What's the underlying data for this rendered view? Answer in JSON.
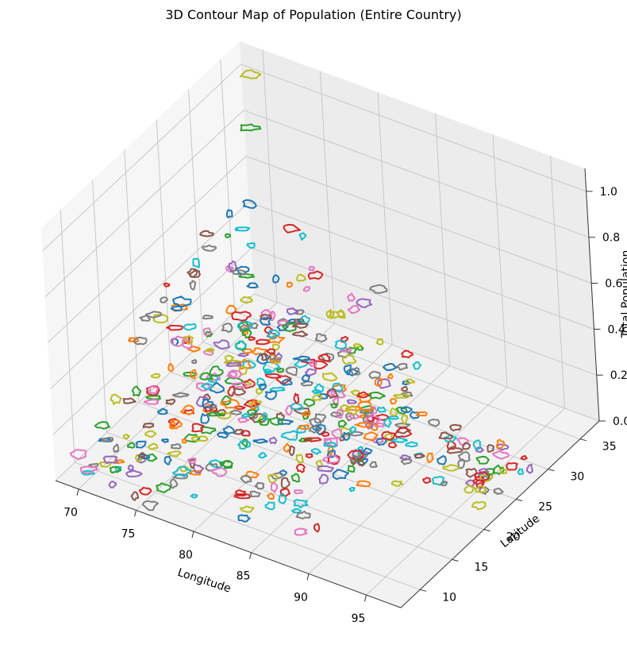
{
  "chart_data": {
    "type": "3d-contour",
    "title": "3D Contour Map of Population (Entire Country)",
    "xlabel": "Longitude",
    "ylabel": "Latitude",
    "zlabel": "Total Population",
    "xlim": [
      68,
      98
    ],
    "ylim": [
      7,
      38
    ],
    "zlim": [
      0,
      1.1
    ],
    "xticks": [
      "70",
      "75",
      "80",
      "85",
      "90",
      "95"
    ],
    "yticks": [
      "10",
      "15",
      "20",
      "25",
      "30",
      "35"
    ],
    "zticks": [
      "0.0",
      "0.2",
      "0.4",
      "0.6",
      "0.8",
      "1.0"
    ],
    "grid": true,
    "colors": [
      "#1f77b4",
      "#ff7f0e",
      "#2ca02c",
      "#d62728",
      "#9467bd",
      "#8c564b",
      "#e377c2",
      "#7f7f7f",
      "#bcbd22",
      "#17becf"
    ],
    "highlighted_contours": [
      {
        "lon": 70.1,
        "lat": 35.9,
        "level": 1.05,
        "color": "#bcbd22"
      },
      {
        "lon": 70.3,
        "lat": 34.8,
        "level": 0.85,
        "color": "#2ca02c"
      },
      {
        "lon": 77.2,
        "lat": 28.6,
        "level": 0.7,
        "color": "#d62728"
      },
      {
        "lon": 88.4,
        "lat": 22.6,
        "level": 0.8,
        "color": "#7f7f7f"
      },
      {
        "lon": 72.8,
        "lat": 19.1,
        "level": 0.55,
        "color": "#1f77b4"
      },
      {
        "lon": 80.3,
        "lat": 13.1,
        "level": 0.4,
        "color": "#ff7f0e"
      },
      {
        "lon": 85.1,
        "lat": 25.6,
        "level": 0.6,
        "color": "#9467bd"
      },
      {
        "lon": 75.9,
        "lat": 22.7,
        "level": 0.45,
        "color": "#d62728"
      }
    ],
    "contour_clusters": [
      {
        "lon": [
          68,
          80
        ],
        "lat": [
          18,
          36
        ],
        "levels": [
          0.0,
          0.5
        ],
        "count": 150
      },
      {
        "lon": [
          74,
          88
        ],
        "lat": [
          10,
          30
        ],
        "levels": [
          0.0,
          0.45
        ],
        "count": 170
      },
      {
        "lon": [
          84,
          90
        ],
        "lat": [
          20,
          28
        ],
        "levels": [
          0.0,
          0.35
        ],
        "count": 60
      },
      {
        "lon": [
          90,
          97
        ],
        "lat": [
          22,
          30
        ],
        "levels": [
          0.0,
          0.1
        ],
        "count": 45
      },
      {
        "lon": [
          69,
          76
        ],
        "lat": [
          8,
          16
        ],
        "levels": [
          0.0,
          0.25
        ],
        "count": 40
      }
    ]
  }
}
